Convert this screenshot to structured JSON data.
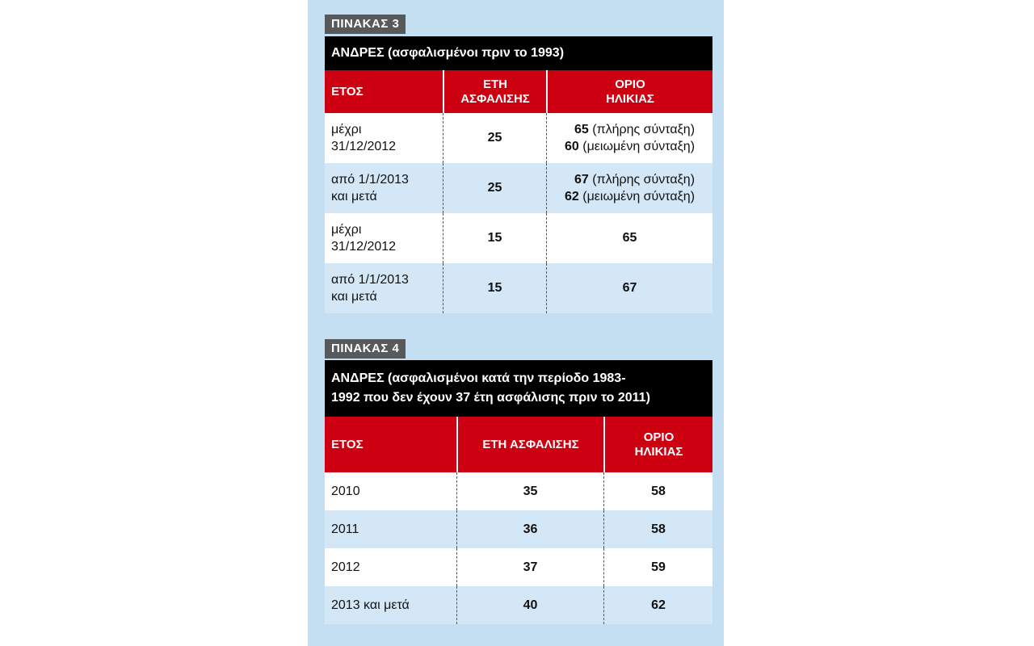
{
  "table3": {
    "tag": "ΠΙΝΑΚΑΣ 3",
    "title": "ΑΝΔΡΕΣ  (ασφαλισμένοι πριν το 1993)",
    "headers": {
      "year": "ΕΤΟΣ",
      "years_insured": "ΕΤΗ ΑΣΦΑΛΙΣΗΣ",
      "age_limit": "ΟΡΙΟ ΗΛΙΚΙΑΣ"
    },
    "rows": [
      {
        "year_l1": "μέχρι",
        "year_l2": "31/12/2012",
        "years": "25",
        "age1_num": "65",
        "age1_text": "(πλήρης σύνταξη)",
        "age2_num": "60",
        "age2_text": "(μειωμένη σύνταξη)"
      },
      {
        "year_l1": "από 1/1/2013",
        "year_l2": "και μετά",
        "years": "25",
        "age1_num": "67",
        "age1_text": "(πλήρης σύνταξη)",
        "age2_num": "62",
        "age2_text": "(μειωμένη σύνταξη)"
      },
      {
        "year_l1": "μέχρι",
        "year_l2": "31/12/2012",
        "years": "15",
        "age": "65"
      },
      {
        "year_l1": "από 1/1/2013",
        "year_l2": "και μετά",
        "years": "15",
        "age": "67"
      }
    ]
  },
  "table4": {
    "tag": "ΠΙΝΑΚΑΣ 4",
    "title_l1": "ΑΝΔΡΕΣ (ασφαλισμένοι κατά την περίοδο 1983-",
    "title_l2": "1992 που δεν έχουν 37 έτη ασφάλισης πριν το 2011)",
    "headers": {
      "year": "ΕΤΟΣ",
      "years_insured": "ΕΤΗ ΑΣΦΑΛΙΣΗΣ",
      "age_limit": "ΟΡΙΟ ΗΛΙΚΙΑΣ"
    },
    "rows": [
      {
        "year": "2010",
        "years": "35",
        "age": "58"
      },
      {
        "year": "2011",
        "years": "36",
        "age": "58"
      },
      {
        "year": "2012",
        "years": "37",
        "age": "59"
      },
      {
        "year": "2013 και μετά",
        "years": "40",
        "age": "62"
      }
    ]
  },
  "colors": {
    "panel": "#c5dff2",
    "header_red": "#cc0010",
    "title_black": "#000000",
    "tag_grey": "#58595b",
    "row_blue": "#d4e7f7"
  }
}
